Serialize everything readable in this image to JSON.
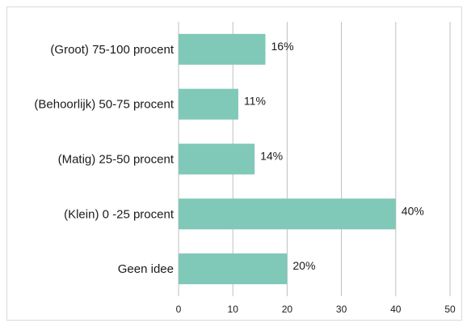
{
  "chart_data": {
    "type": "bar",
    "orientation": "horizontal",
    "title": "",
    "xlabel": "",
    "ylabel": "",
    "categories": [
      "(Groot) 75-100 procent",
      "(Behoorlijk) 50-75 procent",
      "(Matig) 25-50 procent",
      "(Klein) 0 -25 procent",
      "Geen idee"
    ],
    "values": [
      16,
      11,
      14,
      40,
      20
    ],
    "value_labels": [
      "16%",
      "11%",
      "14%",
      "40%",
      "20%"
    ],
    "xlim": [
      0,
      50
    ],
    "xticks": [
      "0",
      "10",
      "20",
      "30",
      "40",
      "50"
    ],
    "grid": true,
    "legend": "none",
    "bar_color": "#80c8b8"
  }
}
